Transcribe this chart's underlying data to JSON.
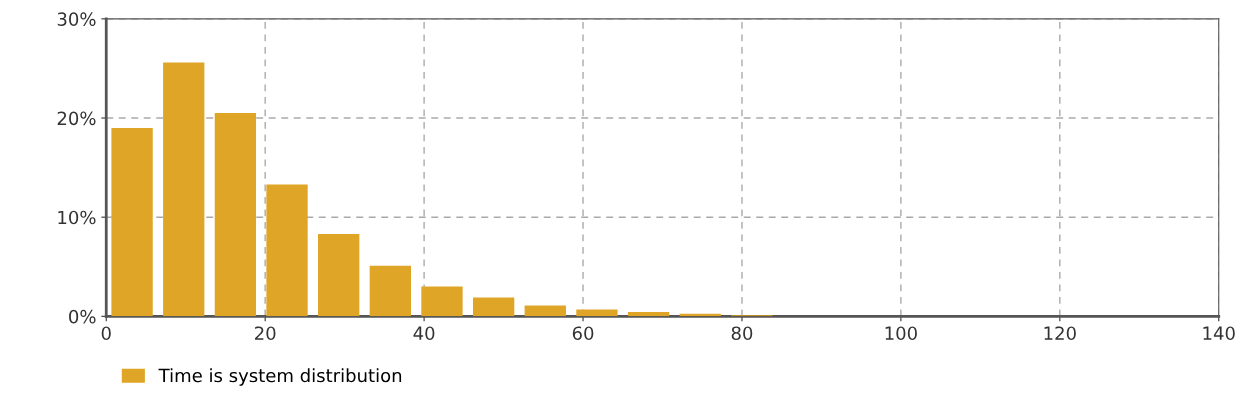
{
  "chart_data": {
    "type": "histogram",
    "bins": [
      0,
      6.5,
      13,
      19.5,
      26,
      32.5,
      39,
      45.5,
      52,
      58.5,
      65,
      71.5,
      78,
      84.5
    ],
    "series": [
      {
        "name": "Time is system distribution",
        "color": "#dfa526",
        "values": [
          19.0,
          25.6,
          20.5,
          13.3,
          8.3,
          5.1,
          3.0,
          1.9,
          1.1,
          0.7,
          0.45,
          0.25,
          0.1
        ]
      }
    ],
    "xlim": [
      0,
      140
    ],
    "xticks": [
      0,
      20,
      40,
      60,
      80,
      100,
      120,
      140
    ],
    "ylim": [
      0,
      30
    ],
    "yticks": [
      {
        "value": 0,
        "label": "0%"
      },
      {
        "value": 10,
        "label": "10%"
      },
      {
        "value": 20,
        "label": "20%"
      },
      {
        "value": 30,
        "label": "30%"
      }
    ],
    "grid": true,
    "legend": "bottom left"
  }
}
